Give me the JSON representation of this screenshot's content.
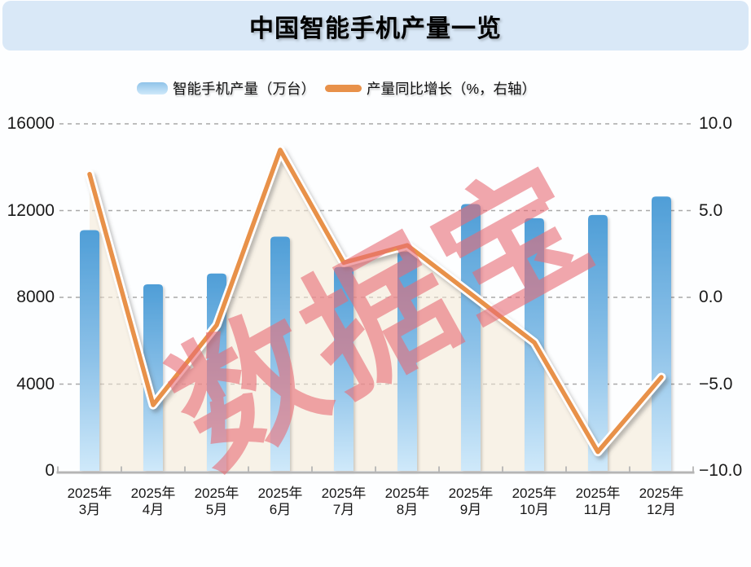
{
  "header": {
    "title": "中国智能手机产量一览"
  },
  "legend": {
    "items": [
      {
        "label": "智能手机产量（万台）",
        "type": "bar"
      },
      {
        "label": "产量同比增长（%，右轴）",
        "type": "line"
      }
    ]
  },
  "watermark": {
    "text": "数据宝"
  },
  "chart_data": {
    "type": "bar+line",
    "title": "中国智能手机产量一览",
    "categories": [
      {
        "year": "2025年",
        "month": "3月"
      },
      {
        "year": "2025年",
        "month": "4月"
      },
      {
        "year": "2025年",
        "month": "5月"
      },
      {
        "year": "2025年",
        "month": "6月"
      },
      {
        "year": "2025年",
        "month": "7月"
      },
      {
        "year": "2025年",
        "month": "8月"
      },
      {
        "year": "2025年",
        "month": "9月"
      },
      {
        "year": "2025年",
        "month": "10月"
      },
      {
        "year": "2025年",
        "month": "11月"
      },
      {
        "year": "2025年",
        "month": "12月"
      }
    ],
    "series": [
      {
        "name": "智能手机产量（万台）",
        "type": "bar",
        "axis": "left",
        "unit": "万台",
        "values": [
          11100,
          8600,
          9100,
          10800,
          9400,
          10100,
          12300,
          11650,
          11800,
          12650
        ]
      },
      {
        "name": "产量同比增长（%，右轴）",
        "type": "line",
        "axis": "right",
        "unit": "%",
        "values": [
          7.1,
          -6.2,
          -1.6,
          8.5,
          2.0,
          3.0,
          0.2,
          -2.6,
          -8.9,
          -4.6
        ]
      }
    ],
    "left_axis": {
      "min": 0,
      "max": 16000,
      "ticks": [
        {
          "label": "16000",
          "value": 16000
        },
        {
          "label": "12000",
          "value": 12000
        },
        {
          "label": "8000",
          "value": 8000
        },
        {
          "label": "4000",
          "value": 4000
        },
        {
          "label": "0",
          "value": 0
        }
      ]
    },
    "right_axis": {
      "min": -10,
      "max": 10,
      "ticks": [
        {
          "label": "10.0",
          "value": 10
        },
        {
          "label": "5.0",
          "value": 5
        },
        {
          "label": "0.0",
          "value": 0
        },
        {
          "label": "−5.0",
          "value": -5
        },
        {
          "label": "−10.0",
          "value": -10
        }
      ]
    },
    "grid": true,
    "legend_position": "top"
  },
  "colors": {
    "title_bg": "#d9e8f7",
    "bar_top": "#4f9ed7",
    "bar_mid": "#8fc3e9",
    "bar_bottom": "#cfe9fa",
    "line": "#e8914a",
    "area_fill": "rgba(244,232,212,0.55)",
    "watermark": "rgba(231,106,117,0.6)",
    "grid": "#a9a9a9",
    "axis": "#b5b5b5",
    "text": "#1a1a1a"
  }
}
